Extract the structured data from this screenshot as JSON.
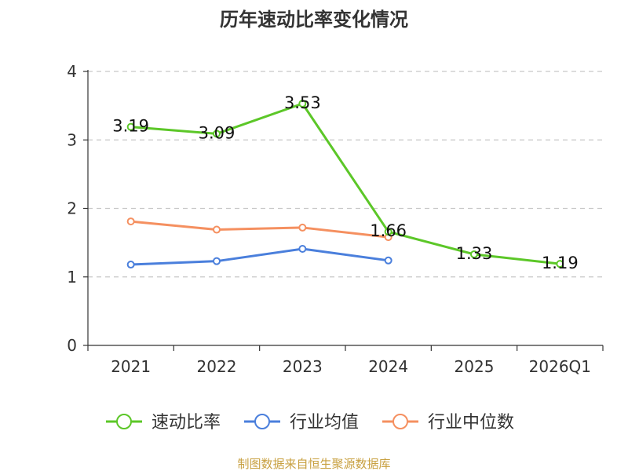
{
  "chart_data": {
    "type": "line",
    "title": "历年速动比率变化情况",
    "categories": [
      "2021",
      "2022",
      "2023",
      "2024",
      "2025",
      "2026Q1"
    ],
    "ylim": [
      0,
      4
    ],
    "yticks": [
      "0",
      "1",
      "2",
      "3",
      "4"
    ],
    "grid": true,
    "legend_position": "bottom",
    "series": [
      {
        "name": "速动比率",
        "color": "#5cc728",
        "values": [
          3.19,
          3.09,
          3.53,
          1.66,
          1.33,
          1.19
        ],
        "labels": [
          "3.19",
          "3.09",
          "3.53",
          "1.66",
          "1.33",
          "1.19"
        ]
      },
      {
        "name": "行业均值",
        "color": "#4a7fdc",
        "values": [
          1.18,
          1.23,
          1.41,
          1.24,
          null,
          null
        ],
        "labels": []
      },
      {
        "name": "行业中位数",
        "color": "#f59060",
        "values": [
          1.81,
          1.69,
          1.72,
          1.58,
          null,
          null
        ],
        "labels": []
      }
    ]
  },
  "source": "制图数据来自恒生聚源数据库"
}
